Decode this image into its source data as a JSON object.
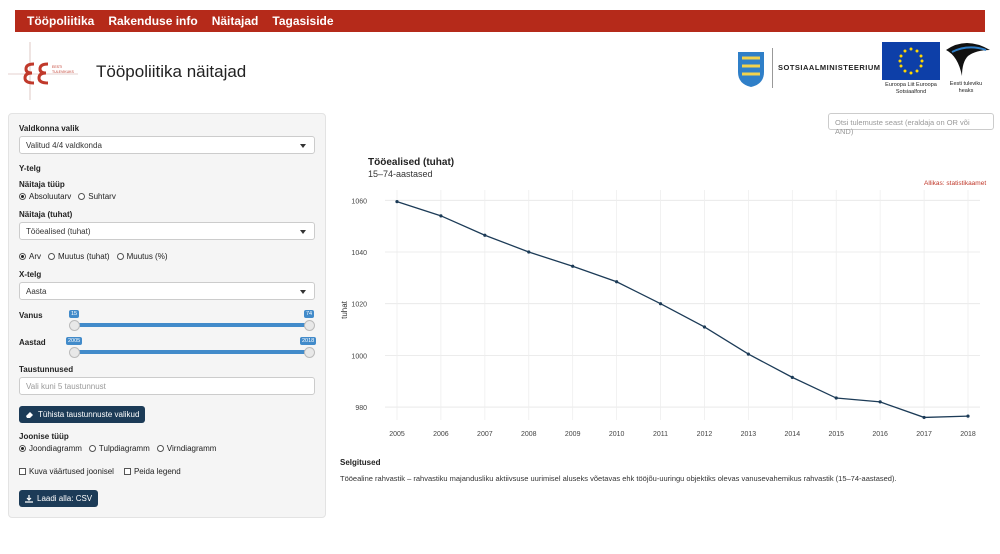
{
  "nav": {
    "items": [
      "Tööpoliitika",
      "Rakenduse info",
      "Näitajad",
      "Tagasiside"
    ]
  },
  "header": {
    "title": "Tööpoliitika näitajad",
    "logo_text": "ESF · Eesti tulevikuks",
    "ministry": "SOTSIAALMINISTEERIUM",
    "eu_text": "Euroopa Liit Euroopa Sotsiaalfond",
    "est_text": "Eesti tuleviku heaks"
  },
  "sidebar": {
    "domain_label": "Valdkonna valik",
    "domain_value": "Valitud 4/4 valdkonda",
    "y_axis_label": "Y-telg",
    "indicator_type_label": "Näitaja tüüp",
    "indicator_type_options": [
      "Absoluutarv",
      "Suhtarv"
    ],
    "indicator_label": "Näitaja (tuhat)",
    "indicator_value": "Tööealised (tuhat)",
    "measure_options": [
      "Arv",
      "Muutus (tuhat)",
      "Muutus (%)"
    ],
    "x_axis_label": "X-telg",
    "x_axis_value": "Aasta",
    "age_label": "Vanus",
    "age_min": "15",
    "age_max": "74",
    "years_label": "Aastad",
    "years_min": "2005",
    "years_max": "2018",
    "background_label": "Taustunnused",
    "background_placeholder": "Vali kuni 5 taustunnust",
    "clear_button": "Tühista taustunnuste valikud",
    "chart_type_label": "Joonise tüüp",
    "chart_type_options": [
      "Joondiagramm",
      "Tulpdiagramm",
      "Virndiagramm"
    ],
    "show_values": "Kuva väärtused joonisel",
    "hide_legend": "Peida legend",
    "download_button": "Laadi alla: CSV"
  },
  "search": {
    "placeholder": "Otsi tulemuste seast (eraldaja on OR või AND)"
  },
  "chart_data": {
    "type": "line",
    "title": "Tööealised (tuhat)",
    "subtitle": "15–74-aastased",
    "source": "Allikas: statistikaamet",
    "ylabel": "tuhat",
    "xlabel": "",
    "ylim": [
      975,
      1064
    ],
    "yticks": [
      980,
      1000,
      1020,
      1040,
      1060
    ],
    "grid": true,
    "color": "#1c3b57",
    "x": [
      "2005",
      "2006",
      "2007",
      "2008",
      "2009",
      "2010",
      "2011",
      "2012",
      "2013",
      "2014",
      "2015",
      "2016",
      "2017",
      "2018"
    ],
    "values": [
      1059.5,
      1054,
      1046.5,
      1040,
      1034.5,
      1028.5,
      1020,
      1011,
      1000.5,
      991.5,
      983.5,
      982,
      976,
      976.5
    ]
  },
  "explanation": {
    "title": "Selgitused",
    "text": "Tööealine rahvastik – rahvastiku majandusliku aktiivsuse uurimisel aluseks võetavas ehk tööjõu-uuringu objektiks olevas vanusevahemikus rahvastik (15–74-aastased)."
  }
}
